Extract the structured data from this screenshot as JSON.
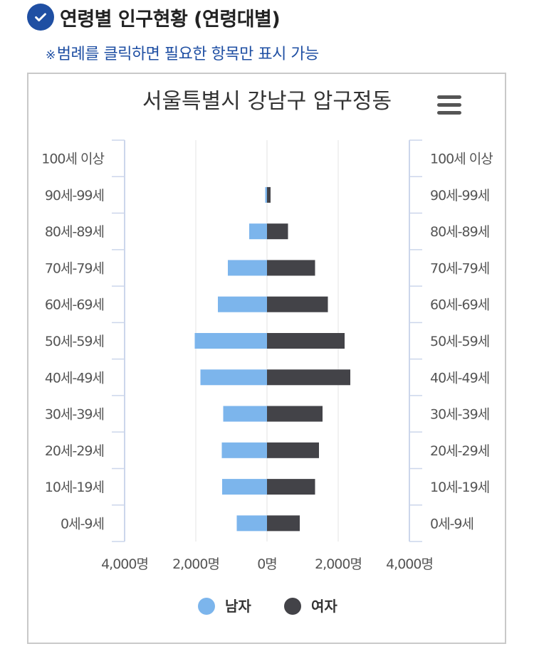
{
  "header": {
    "title": "연령별 인구현황 (연령대별)",
    "note_mark": "※",
    "note": "범례를 클릭하면 필요한 항목만 표시 가능"
  },
  "menu_icon": "hamburger-menu-icon",
  "colors": {
    "male": "#7cb5ec",
    "female": "#434348",
    "accent": "#1f4fa3"
  },
  "chart_data": {
    "type": "bar",
    "orientation": "horizontal",
    "title": "서울특별시 강남구 압구정동",
    "categories": [
      "100세 이상",
      "90세-99세",
      "80세-89세",
      "70세-79세",
      "60세-69세",
      "50세-59세",
      "40세-49세",
      "30세-39세",
      "20세-29세",
      "10세-19세",
      "0세-9세"
    ],
    "series": [
      {
        "name": "남자",
        "color": "#7cb5ec",
        "values": [
          0,
          50,
          500,
          1100,
          1380,
          2030,
          1870,
          1230,
          1270,
          1260,
          850
        ]
      },
      {
        "name": "여자",
        "color": "#434348",
        "values": [
          0,
          100,
          590,
          1350,
          1710,
          2180,
          2340,
          1560,
          1460,
          1350,
          920
        ]
      }
    ],
    "xlim": [
      -4000,
      4000
    ],
    "x_ticks": [
      -4000,
      -2000,
      0,
      2000,
      4000
    ],
    "x_tick_labels": [
      "4,000명",
      "2,000명",
      "0명",
      "2,000명",
      "4,000명"
    ],
    "grid": true,
    "legend": "bottom"
  }
}
